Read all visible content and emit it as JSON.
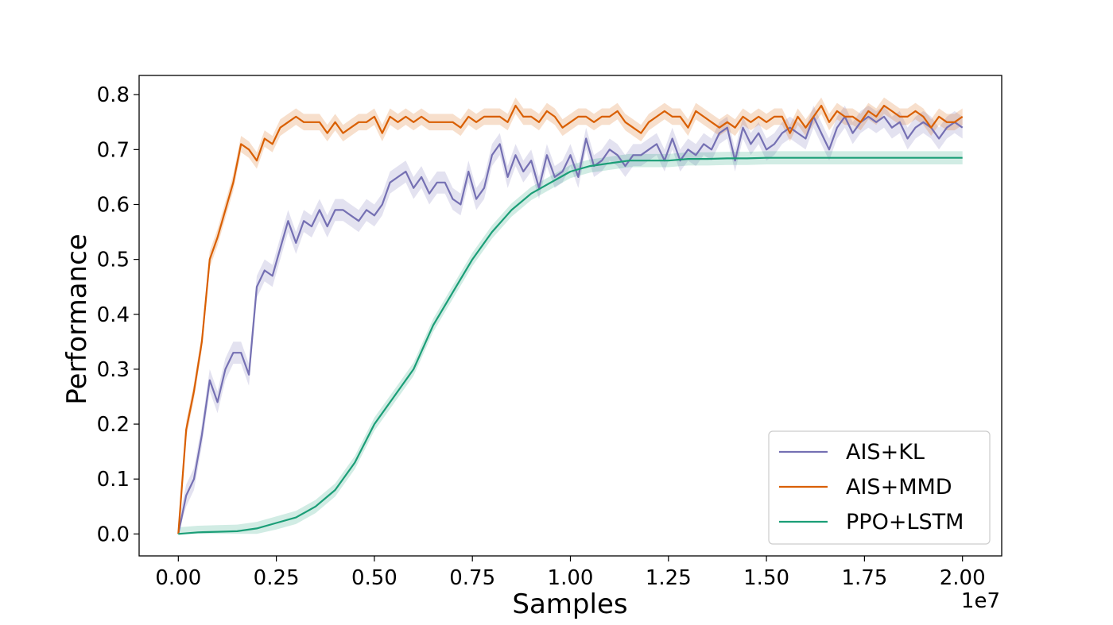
{
  "chart_data": {
    "type": "line",
    "xlabel": "Samples",
    "ylabel": "Performance",
    "x_offset_label": "1e7",
    "xlim": [
      -0.1,
      2.1
    ],
    "ylim": [
      -0.04,
      0.835
    ],
    "xticks": [
      0.0,
      0.25,
      0.5,
      0.75,
      1.0,
      1.25,
      1.5,
      1.75,
      2.0
    ],
    "xtick_labels": [
      "0.00",
      "0.25",
      "0.50",
      "0.75",
      "1.00",
      "1.25",
      "1.50",
      "1.75",
      "2.00"
    ],
    "yticks": [
      0.0,
      0.1,
      0.2,
      0.3,
      0.4,
      0.5,
      0.6,
      0.7,
      0.8
    ],
    "ytick_labels": [
      "0.0",
      "0.1",
      "0.2",
      "0.3",
      "0.4",
      "0.5",
      "0.6",
      "0.7",
      "0.8"
    ],
    "grid": false,
    "legend_position": "lower-right",
    "series": [
      {
        "name": "AIS+KL",
        "color": "#7570b3",
        "x": [
          0.0,
          0.02,
          0.04,
          0.06,
          0.08,
          0.1,
          0.12,
          0.14,
          0.16,
          0.18,
          0.2,
          0.22,
          0.24,
          0.26,
          0.28,
          0.3,
          0.32,
          0.34,
          0.36,
          0.38,
          0.4,
          0.42,
          0.44,
          0.46,
          0.48,
          0.5,
          0.52,
          0.54,
          0.56,
          0.58,
          0.6,
          0.62,
          0.64,
          0.66,
          0.68,
          0.7,
          0.72,
          0.74,
          0.76,
          0.78,
          0.8,
          0.82,
          0.84,
          0.86,
          0.88,
          0.9,
          0.92,
          0.94,
          0.96,
          0.98,
          1.0,
          1.02,
          1.04,
          1.06,
          1.08,
          1.1,
          1.12,
          1.14,
          1.16,
          1.18,
          1.2,
          1.22,
          1.24,
          1.26,
          1.28,
          1.3,
          1.32,
          1.34,
          1.36,
          1.38,
          1.4,
          1.42,
          1.44,
          1.46,
          1.48,
          1.5,
          1.52,
          1.54,
          1.56,
          1.58,
          1.6,
          1.62,
          1.64,
          1.66,
          1.68,
          1.7,
          1.72,
          1.74,
          1.76,
          1.78,
          1.8,
          1.82,
          1.84,
          1.86,
          1.88,
          1.9,
          1.92,
          1.94,
          1.96,
          1.98,
          2.0
        ],
        "values": [
          0.0,
          0.07,
          0.1,
          0.18,
          0.28,
          0.24,
          0.3,
          0.33,
          0.33,
          0.29,
          0.45,
          0.48,
          0.47,
          0.52,
          0.57,
          0.53,
          0.57,
          0.56,
          0.59,
          0.56,
          0.59,
          0.59,
          0.58,
          0.57,
          0.59,
          0.58,
          0.6,
          0.64,
          0.65,
          0.66,
          0.63,
          0.65,
          0.62,
          0.64,
          0.64,
          0.61,
          0.6,
          0.66,
          0.61,
          0.63,
          0.69,
          0.71,
          0.65,
          0.69,
          0.66,
          0.68,
          0.63,
          0.69,
          0.65,
          0.66,
          0.69,
          0.65,
          0.72,
          0.67,
          0.68,
          0.7,
          0.69,
          0.67,
          0.69,
          0.69,
          0.7,
          0.71,
          0.68,
          0.72,
          0.68,
          0.7,
          0.69,
          0.71,
          0.7,
          0.73,
          0.74,
          0.68,
          0.74,
          0.71,
          0.73,
          0.7,
          0.71,
          0.73,
          0.74,
          0.73,
          0.72,
          0.76,
          0.73,
          0.7,
          0.74,
          0.76,
          0.73,
          0.75,
          0.76,
          0.75,
          0.76,
          0.74,
          0.75,
          0.72,
          0.74,
          0.75,
          0.74,
          0.72,
          0.74,
          0.75,
          0.74
        ]
      },
      {
        "name": "AIS+MMD",
        "color": "#d95f02",
        "x": [
          0.0,
          0.02,
          0.04,
          0.06,
          0.08,
          0.1,
          0.12,
          0.14,
          0.16,
          0.18,
          0.2,
          0.22,
          0.24,
          0.26,
          0.28,
          0.3,
          0.32,
          0.34,
          0.36,
          0.38,
          0.4,
          0.42,
          0.44,
          0.46,
          0.48,
          0.5,
          0.52,
          0.54,
          0.56,
          0.58,
          0.6,
          0.62,
          0.64,
          0.66,
          0.68,
          0.7,
          0.72,
          0.74,
          0.76,
          0.78,
          0.8,
          0.82,
          0.84,
          0.86,
          0.88,
          0.9,
          0.92,
          0.94,
          0.96,
          0.98,
          1.0,
          1.02,
          1.04,
          1.06,
          1.08,
          1.1,
          1.12,
          1.14,
          1.16,
          1.18,
          1.2,
          1.22,
          1.24,
          1.26,
          1.28,
          1.3,
          1.32,
          1.34,
          1.36,
          1.38,
          1.4,
          1.42,
          1.44,
          1.46,
          1.48,
          1.5,
          1.52,
          1.54,
          1.56,
          1.58,
          1.6,
          1.62,
          1.64,
          1.66,
          1.68,
          1.7,
          1.72,
          1.74,
          1.76,
          1.78,
          1.8,
          1.82,
          1.84,
          1.86,
          1.88,
          1.9,
          1.92,
          1.94,
          1.96,
          1.98,
          2.0
        ],
        "values": [
          0.0,
          0.19,
          0.26,
          0.35,
          0.5,
          0.54,
          0.59,
          0.64,
          0.71,
          0.7,
          0.68,
          0.72,
          0.71,
          0.74,
          0.75,
          0.76,
          0.75,
          0.75,
          0.75,
          0.73,
          0.75,
          0.73,
          0.74,
          0.75,
          0.75,
          0.76,
          0.73,
          0.76,
          0.75,
          0.76,
          0.75,
          0.76,
          0.75,
          0.75,
          0.75,
          0.75,
          0.74,
          0.76,
          0.75,
          0.76,
          0.76,
          0.76,
          0.75,
          0.78,
          0.76,
          0.76,
          0.75,
          0.77,
          0.76,
          0.74,
          0.75,
          0.76,
          0.76,
          0.75,
          0.76,
          0.76,
          0.77,
          0.75,
          0.74,
          0.73,
          0.75,
          0.76,
          0.77,
          0.76,
          0.76,
          0.74,
          0.77,
          0.76,
          0.75,
          0.74,
          0.75,
          0.74,
          0.76,
          0.75,
          0.76,
          0.75,
          0.76,
          0.76,
          0.73,
          0.76,
          0.74,
          0.76,
          0.78,
          0.75,
          0.77,
          0.76,
          0.76,
          0.75,
          0.77,
          0.76,
          0.78,
          0.77,
          0.76,
          0.76,
          0.77,
          0.76,
          0.74,
          0.76,
          0.75,
          0.75,
          0.76
        ]
      },
      {
        "name": "PPO+LSTM",
        "color": "#1b9e77",
        "x": [
          0.0,
          0.05,
          0.1,
          0.15,
          0.2,
          0.25,
          0.3,
          0.35,
          0.4,
          0.45,
          0.5,
          0.55,
          0.6,
          0.65,
          0.7,
          0.75,
          0.8,
          0.85,
          0.9,
          0.95,
          1.0,
          1.05,
          1.1,
          1.15,
          1.2,
          1.25,
          1.3,
          1.35,
          1.4,
          1.45,
          1.5,
          1.55,
          1.6,
          1.65,
          1.7,
          1.75,
          1.8,
          1.85,
          1.9,
          1.95,
          2.0
        ],
        "values": [
          0.0,
          0.003,
          0.004,
          0.005,
          0.01,
          0.02,
          0.03,
          0.05,
          0.08,
          0.13,
          0.2,
          0.25,
          0.3,
          0.38,
          0.44,
          0.5,
          0.55,
          0.59,
          0.62,
          0.64,
          0.66,
          0.67,
          0.675,
          0.68,
          0.68,
          0.68,
          0.683,
          0.683,
          0.684,
          0.684,
          0.685,
          0.685,
          0.685,
          0.685,
          0.685,
          0.685,
          0.685,
          0.685,
          0.685,
          0.685,
          0.685
        ]
      }
    ]
  }
}
